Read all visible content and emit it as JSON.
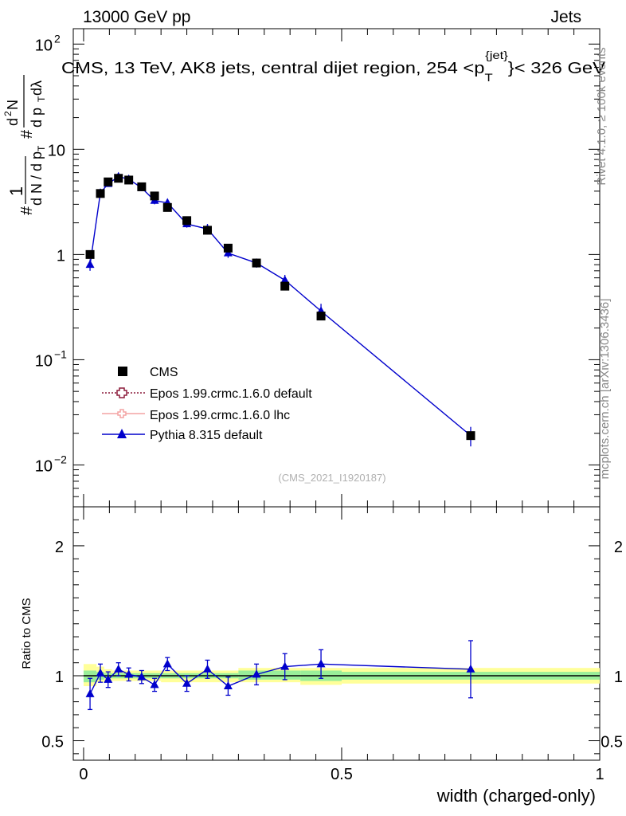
{
  "header": {
    "left": "13000 GeV pp",
    "right": "Jets"
  },
  "side_labels": {
    "rivet": "Rivet 4.1.0, ≥ 100k events",
    "mcplots": "mcplots.cern.ch [arXiv:1306.3436]"
  },
  "watermark": "(CMS_2021_I1920187)",
  "chart_data": [
    {
      "type": "scatter",
      "yscale": "log",
      "title": "CMS, 13 TeV, AK8 jets, central dijet region, 254 <p",
      "title_sup": "{jet}",
      "title_sub": "T",
      "title_end": "}< 326 GeV",
      "ylabel": "# 1/(dN/dp_T) d²N/(dp_T dλ)",
      "xlim": [
        -0.02,
        1.0
      ],
      "ylim": [
        0.004,
        140
      ],
      "yticks": [
        {
          "v": 0.01,
          "base": "10",
          "exp": "−2"
        },
        {
          "v": 0.1,
          "base": "10",
          "exp": "−1"
        },
        {
          "v": 1,
          "base": "1",
          "exp": ""
        },
        {
          "v": 10,
          "base": "10",
          "exp": ""
        },
        {
          "v": 100,
          "base": "10",
          "exp": "2"
        }
      ],
      "legend": [
        {
          "name": "CMS",
          "style": "square-black"
        },
        {
          "name": "Epos 1.99.crmc.1.6.0 default",
          "style": "dotted-open-cross"
        },
        {
          "name": "Epos 1.99.crmc.1.6.0 lhc",
          "style": "solid-pink-cross"
        },
        {
          "name": "Pythia 8.315 default",
          "style": "solid-blue-triangle"
        }
      ],
      "series": [
        {
          "name": "CMS",
          "x": [
            0.0125,
            0.0325,
            0.0475,
            0.0675,
            0.0875,
            0.1125,
            0.1375,
            0.1625,
            0.2,
            0.24,
            0.28,
            0.335,
            0.39,
            0.46,
            0.75
          ],
          "y": [
            1.0,
            3.8,
            4.9,
            5.3,
            5.1,
            4.4,
            3.6,
            2.8,
            2.1,
            1.7,
            1.15,
            0.83,
            0.5,
            0.26,
            0.019
          ]
        },
        {
          "name": "Pythia 8.315 default",
          "x": [
            0.0125,
            0.0325,
            0.0475,
            0.0675,
            0.0875,
            0.1125,
            0.1375,
            0.1625,
            0.2,
            0.24,
            0.28,
            0.335,
            0.39,
            0.46,
            0.75
          ],
          "y": [
            0.8,
            3.85,
            4.7,
            5.5,
            5.2,
            4.3,
            3.25,
            3.1,
            1.95,
            1.75,
            1.03,
            0.83,
            0.57,
            0.29,
            0.019
          ],
          "err": [
            0.1,
            0.2,
            0.25,
            0.3,
            0.3,
            0.3,
            0.25,
            0.25,
            0.15,
            0.2,
            0.1,
            0.08,
            0.07,
            0.05,
            0.004
          ]
        }
      ]
    },
    {
      "type": "line",
      "ylabel": "Ratio to CMS",
      "xlabel": "width (charged-only)",
      "xlim": [
        -0.02,
        1.0
      ],
      "ylim": [
        0.35,
        2.3
      ],
      "yticks": [
        0.5,
        1,
        2
      ],
      "xticks": [
        0,
        0.5,
        1
      ],
      "bands": [
        {
          "x0": 0.0,
          "x1": 0.025,
          "yellow": [
            0.92,
            1.09
          ],
          "green": [
            0.95,
            1.04
          ]
        },
        {
          "x0": 0.025,
          "x1": 0.04,
          "yellow": [
            0.95,
            1.07
          ],
          "green": [
            0.97,
            1.03
          ]
        },
        {
          "x0": 0.04,
          "x1": 0.055,
          "yellow": [
            0.96,
            1.05
          ],
          "green": [
            0.98,
            1.02
          ]
        },
        {
          "x0": 0.055,
          "x1": 0.15,
          "yellow": [
            0.96,
            1.04
          ],
          "green": [
            0.98,
            1.02
          ]
        },
        {
          "x0": 0.15,
          "x1": 0.3,
          "yellow": [
            0.95,
            1.04
          ],
          "green": [
            0.98,
            1.02
          ]
        },
        {
          "x0": 0.3,
          "x1": 0.42,
          "yellow": [
            0.95,
            1.06
          ],
          "green": [
            0.97,
            1.04
          ]
        },
        {
          "x0": 0.42,
          "x1": 0.5,
          "yellow": [
            0.93,
            1.06
          ],
          "green": [
            0.96,
            1.04
          ]
        },
        {
          "x0": 0.5,
          "x1": 1.0,
          "yellow": [
            0.94,
            1.06
          ],
          "green": [
            0.97,
            1.03
          ]
        }
      ],
      "series": [
        {
          "name": "Pythia 8.315 default",
          "x": [
            0.0125,
            0.0325,
            0.0475,
            0.0675,
            0.0875,
            0.1125,
            0.1375,
            0.1625,
            0.2,
            0.24,
            0.28,
            0.335,
            0.39,
            0.46,
            0.75
          ],
          "y": [
            0.86,
            1.02,
            0.97,
            1.05,
            1.01,
            0.99,
            0.93,
            1.09,
            0.94,
            1.05,
            0.92,
            1.01,
            1.07,
            1.09,
            1.05
          ],
          "err": [
            0.12,
            0.07,
            0.06,
            0.05,
            0.05,
            0.05,
            0.05,
            0.05,
            0.06,
            0.07,
            0.07,
            0.08,
            0.1,
            0.11,
            0.22
          ]
        }
      ]
    }
  ]
}
